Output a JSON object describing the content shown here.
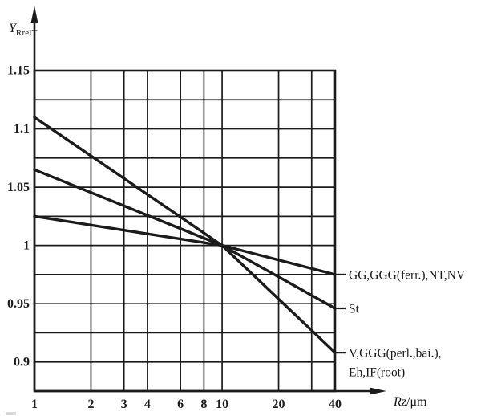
{
  "figure": {
    "background": "#ffffff",
    "ink": "#1b1b1b"
  },
  "chart_data": {
    "type": "line",
    "x_scale": "log",
    "grid": true,
    "x_axis": {
      "title_symbol": "Rz",
      "title_unit": "/μm",
      "range": [
        1,
        40
      ],
      "tick_values": [
        1,
        2,
        3,
        4,
        6,
        8,
        10,
        20,
        40
      ],
      "tick_labels": [
        "1",
        "2",
        "3",
        "4",
        "6",
        "8",
        "10",
        "20",
        "40"
      ],
      "gridline_values": [
        2,
        3,
        4,
        6,
        8,
        10,
        20,
        30
      ]
    },
    "y_axis": {
      "title_symbol": "Y",
      "title_subscript": "RrelT",
      "range": [
        0.875,
        1.15
      ],
      "tick_values": [
        1.15,
        1.1,
        1.05,
        1.0,
        0.95,
        0.9
      ],
      "tick_labels": [
        "1.15",
        "1.1",
        "1.05",
        "1",
        "0.95",
        "0.9"
      ],
      "gridline_values": [
        1.125,
        1.1,
        1.075,
        1.05,
        1.025,
        1.0,
        0.975,
        0.95,
        0.925,
        0.9
      ]
    },
    "series": [
      {
        "name": "GG,GGG(ferr.),NT,NV",
        "label_lines": [
          "GG,GGG(ferr.),NT,NV"
        ],
        "points": [
          [
            1,
            1.025
          ],
          [
            10,
            1.0
          ],
          [
            40,
            0.975
          ]
        ]
      },
      {
        "name": "St",
        "label_lines": [
          "St"
        ],
        "points": [
          [
            1,
            1.065
          ],
          [
            10,
            1.0
          ],
          [
            40,
            0.946
          ]
        ]
      },
      {
        "name": "V,GGG(perl.,bai.),Eh,IF(root)",
        "label_lines": [
          "V,GGG(perl.,bai.),",
          "Eh,IF(root)"
        ],
        "points": [
          [
            1,
            1.11
          ],
          [
            10,
            1.0
          ],
          [
            40,
            0.908
          ]
        ]
      }
    ]
  }
}
